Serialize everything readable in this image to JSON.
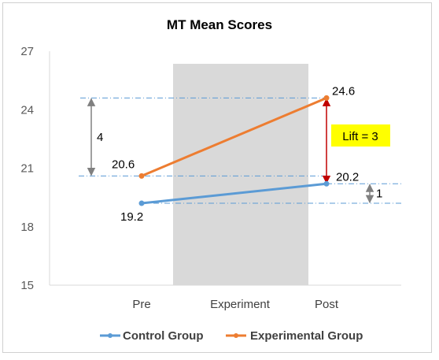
{
  "chart_data": {
    "type": "line",
    "title": "MT Mean Scores",
    "categories": [
      "Pre",
      "Experiment",
      "Post"
    ],
    "ylim": [
      15,
      27
    ],
    "yticks": [
      15,
      18,
      21,
      24,
      27
    ],
    "grid": false,
    "legend_position": "bottom",
    "series": [
      {
        "name": "Control Group",
        "color": "#5B9BD5",
        "points": [
          {
            "category": "Pre",
            "value": 19.2,
            "label": "19.2"
          },
          {
            "category": "Post",
            "value": 20.2,
            "label": "20.2"
          }
        ]
      },
      {
        "name": "Experimental Group",
        "color": "#ED7D31",
        "points": [
          {
            "category": "Pre",
            "value": 20.6,
            "label": "20.6"
          },
          {
            "category": "Post",
            "value": 24.6,
            "label": "24.6"
          }
        ]
      }
    ],
    "shaded_region": {
      "category": "Experiment",
      "color": "#D9D9D9"
    },
    "reference_lines": [
      24.6,
      20.6,
      20.2,
      19.2
    ],
    "annotations": [
      {
        "id": "exp-gain",
        "from": 20.6,
        "to": 24.6,
        "label": "4",
        "color": "#808080"
      },
      {
        "id": "ctrl-gain",
        "from": 19.2,
        "to": 20.2,
        "label": "1",
        "color": "#808080"
      },
      {
        "id": "lift",
        "from": 20.2,
        "to": 24.6,
        "label": "Lift = 3",
        "color": "#C00000",
        "box_color": "#FFFF00"
      }
    ]
  }
}
